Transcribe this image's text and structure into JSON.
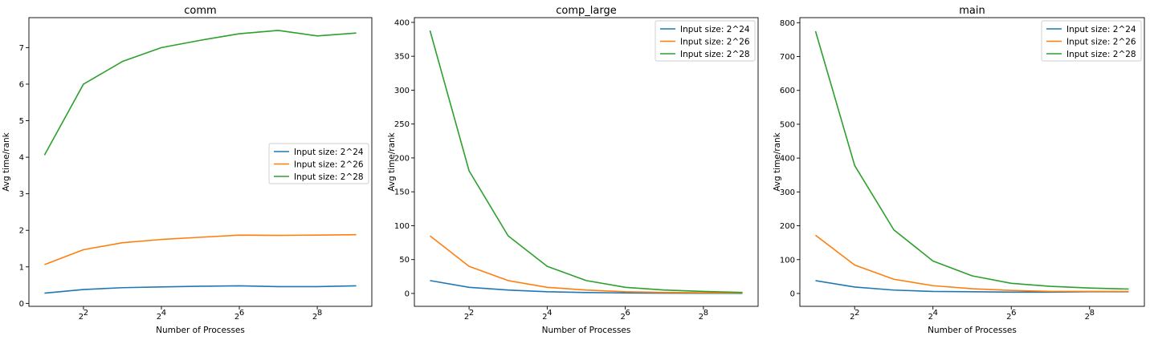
{
  "chart_data": [
    {
      "type": "line",
      "title": "comm",
      "xlabel": "Number of Processes",
      "ylabel": "Avg time/rank",
      "x_scale": "log2",
      "x": [
        2,
        4,
        8,
        16,
        32,
        64,
        128,
        256,
        512
      ],
      "xticks": [
        4,
        16,
        64,
        256
      ],
      "xtick_labels": [
        {
          "base": "2",
          "exp": "2"
        },
        {
          "base": "2",
          "exp": "4"
        },
        {
          "base": "2",
          "exp": "6"
        },
        {
          "base": "2",
          "exp": "8"
        }
      ],
      "ylim": [
        -0.08,
        7.82
      ],
      "yticks": [
        0,
        1,
        2,
        3,
        4,
        5,
        6,
        7
      ],
      "legend_position": "center-right",
      "series": [
        {
          "name": "Input size: 2^24",
          "color": "#1f77b4",
          "values": [
            0.28,
            0.38,
            0.43,
            0.45,
            0.47,
            0.48,
            0.46,
            0.46,
            0.48
          ]
        },
        {
          "name": "Input size: 2^26",
          "color": "#ff7f0e",
          "values": [
            1.06,
            1.47,
            1.66,
            1.75,
            1.81,
            1.87,
            1.86,
            1.87,
            1.88
          ]
        },
        {
          "name": "Input size: 2^28",
          "color": "#2ca02c",
          "values": [
            4.06,
            6.0,
            6.62,
            7.0,
            7.2,
            7.38,
            7.47,
            7.32,
            7.4
          ]
        }
      ]
    },
    {
      "type": "line",
      "title": "comp_large",
      "xlabel": "Number of Processes",
      "ylabel": "Avg time/rank",
      "x_scale": "log2",
      "x": [
        2,
        4,
        8,
        16,
        32,
        64,
        128,
        256,
        512
      ],
      "xticks": [
        4,
        16,
        64,
        256
      ],
      "xtick_labels": [
        {
          "base": "2",
          "exp": "2"
        },
        {
          "base": "2",
          "exp": "4"
        },
        {
          "base": "2",
          "exp": "6"
        },
        {
          "base": "2",
          "exp": "8"
        }
      ],
      "ylim": [
        -19,
        407
      ],
      "yticks": [
        0,
        50,
        100,
        150,
        200,
        250,
        300,
        350,
        400
      ],
      "legend_position": "top-right",
      "series": [
        {
          "name": "Input size: 2^24",
          "color": "#1f77b4",
          "values": [
            19,
            9,
            5,
            2.5,
            1.3,
            0.8,
            0.5,
            0.3,
            0.2
          ]
        },
        {
          "name": "Input size: 2^26",
          "color": "#ff7f0e",
          "values": [
            85,
            40,
            19,
            9,
            5,
            2.5,
            1.5,
            1,
            0.8
          ]
        },
        {
          "name": "Input size: 2^28",
          "color": "#2ca02c",
          "values": [
            388,
            181,
            85,
            40,
            19,
            9,
            5,
            3,
            1.5
          ]
        }
      ]
    },
    {
      "type": "line",
      "title": "main",
      "xlabel": "Number of Processes",
      "ylabel": "Avg time/rank",
      "x_scale": "log2",
      "x": [
        2,
        4,
        8,
        16,
        32,
        64,
        128,
        256,
        512
      ],
      "xticks": [
        4,
        16,
        64,
        256
      ],
      "xtick_labels": [
        {
          "base": "2",
          "exp": "2"
        },
        {
          "base": "2",
          "exp": "4"
        },
        {
          "base": "2",
          "exp": "6"
        },
        {
          "base": "2",
          "exp": "8"
        }
      ],
      "ylim": [
        -38,
        815
      ],
      "yticks": [
        0,
        100,
        200,
        300,
        400,
        500,
        600,
        700,
        800
      ],
      "legend_position": "top-right",
      "series": [
        {
          "name": "Input size: 2^24",
          "color": "#1f77b4",
          "values": [
            38,
            19,
            10,
            6,
            5,
            4,
            4,
            5,
            5
          ]
        },
        {
          "name": "Input size: 2^26",
          "color": "#ff7f0e",
          "values": [
            172,
            84,
            42,
            23,
            14,
            9,
            6,
            6,
            6
          ]
        },
        {
          "name": "Input size: 2^28",
          "color": "#2ca02c",
          "values": [
            775,
            378,
            188,
            96,
            52,
            30,
            21,
            16,
            13
          ]
        }
      ]
    }
  ]
}
